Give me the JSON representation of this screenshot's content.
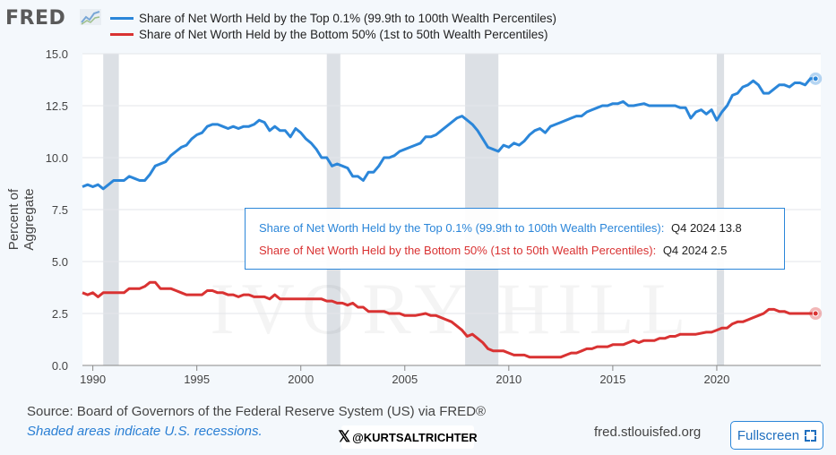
{
  "header": {
    "logo_text": "FRED",
    "logo_icon": "chart-line-icon"
  },
  "legend": [
    {
      "label": "Share of Net Worth Held by the Top 0.1% (99.9th to 100th Wealth Percentiles)",
      "color": "#2b86d9"
    },
    {
      "label": "Share of Net Worth Held by the Bottom 50% (1st to 50th Wealth Percentiles)",
      "color": "#d93232"
    }
  ],
  "tooltip": {
    "line1_label": "Share of Net Worth Held by the Top 0.1% (99.9th to 100th Wealth Percentiles):",
    "line1_value": "Q4 2024 13.8",
    "line2_label": "Share of Net Worth Held by the Bottom 50% (1st to 50th Wealth Percentiles):",
    "line2_value": "Q4 2024 2.5"
  },
  "watermark": "IVORY HILL",
  "footer": {
    "source": "Source: Board of Governors of the Federal Reserve System (US) via FRED®",
    "shaded_note": "Shaded areas indicate U.S. recessions.",
    "credit": "@KURTSALTRICHTER",
    "credit_icon": "x-logo-icon",
    "site": "fred.stlouisfed.org",
    "fullscreen_label": "Fullscreen",
    "fullscreen_icon": "expand-icon"
  },
  "chart_data": {
    "type": "line",
    "xlabel": "",
    "ylabel": "Percent of Aggregate",
    "xlim": [
      1989.5,
      2025.0
    ],
    "ylim": [
      0,
      15
    ],
    "x_ticks": [
      1990,
      1995,
      2000,
      2005,
      2010,
      2015,
      2020
    ],
    "y_ticks": [
      0.0,
      2.5,
      5.0,
      7.5,
      10.0,
      12.5,
      15.0
    ],
    "y_tick_labels": [
      "0.0",
      "2.5",
      "5.0",
      "7.5",
      "10.0",
      "12.5",
      "15.0"
    ],
    "grid": "horizontal",
    "recessions": [
      [
        1990.5,
        1991.25
      ],
      [
        2001.25,
        2001.9
      ],
      [
        2007.9,
        2009.5
      ],
      [
        2020.0,
        2020.35
      ]
    ],
    "series": [
      {
        "name": "Share of Net Worth Held by the Top 0.1% (99.9th to 100th Wealth Percentiles)",
        "color": "#2b86d9",
        "points": [
          [
            1989.5,
            8.6
          ],
          [
            1989.75,
            8.7
          ],
          [
            1990.0,
            8.6
          ],
          [
            1990.25,
            8.7
          ],
          [
            1990.5,
            8.5
          ],
          [
            1990.75,
            8.7
          ],
          [
            1991.0,
            8.9
          ],
          [
            1991.5,
            8.9
          ],
          [
            1991.75,
            9.1
          ],
          [
            1992.0,
            9.0
          ],
          [
            1992.25,
            8.9
          ],
          [
            1992.5,
            8.9
          ],
          [
            1992.75,
            9.2
          ],
          [
            1993.0,
            9.6
          ],
          [
            1993.5,
            9.8
          ],
          [
            1993.75,
            10.1
          ],
          [
            1994.0,
            10.3
          ],
          [
            1994.25,
            10.5
          ],
          [
            1994.5,
            10.6
          ],
          [
            1994.75,
            10.9
          ],
          [
            1995.0,
            11.1
          ],
          [
            1995.25,
            11.2
          ],
          [
            1995.5,
            11.5
          ],
          [
            1995.75,
            11.6
          ],
          [
            1996.0,
            11.6
          ],
          [
            1996.25,
            11.5
          ],
          [
            1996.5,
            11.4
          ],
          [
            1996.75,
            11.5
          ],
          [
            1997.0,
            11.4
          ],
          [
            1997.25,
            11.5
          ],
          [
            1997.5,
            11.5
          ],
          [
            1997.75,
            11.6
          ],
          [
            1998.0,
            11.8
          ],
          [
            1998.25,
            11.7
          ],
          [
            1998.5,
            11.3
          ],
          [
            1998.75,
            11.5
          ],
          [
            1999.0,
            11.3
          ],
          [
            1999.25,
            11.3
          ],
          [
            1999.5,
            11.0
          ],
          [
            1999.75,
            11.4
          ],
          [
            2000.0,
            11.2
          ],
          [
            2000.25,
            10.9
          ],
          [
            2000.5,
            10.7
          ],
          [
            2000.75,
            10.4
          ],
          [
            2001.0,
            10.0
          ],
          [
            2001.25,
            10.0
          ],
          [
            2001.5,
            9.6
          ],
          [
            2001.75,
            9.7
          ],
          [
            2002.0,
            9.6
          ],
          [
            2002.25,
            9.5
          ],
          [
            2002.5,
            9.1
          ],
          [
            2002.75,
            9.1
          ],
          [
            2003.0,
            8.9
          ],
          [
            2003.25,
            9.3
          ],
          [
            2003.5,
            9.3
          ],
          [
            2003.75,
            9.6
          ],
          [
            2004.0,
            10.0
          ],
          [
            2004.25,
            10.0
          ],
          [
            2004.5,
            10.1
          ],
          [
            2004.75,
            10.3
          ],
          [
            2005.0,
            10.4
          ],
          [
            2005.25,
            10.5
          ],
          [
            2005.5,
            10.6
          ],
          [
            2005.75,
            10.7
          ],
          [
            2006.0,
            11.0
          ],
          [
            2006.25,
            11.0
          ],
          [
            2006.5,
            11.1
          ],
          [
            2006.75,
            11.3
          ],
          [
            2007.0,
            11.5
          ],
          [
            2007.25,
            11.7
          ],
          [
            2007.5,
            11.9
          ],
          [
            2007.75,
            12.0
          ],
          [
            2008.0,
            11.8
          ],
          [
            2008.25,
            11.6
          ],
          [
            2008.5,
            11.3
          ],
          [
            2008.75,
            10.9
          ],
          [
            2009.0,
            10.5
          ],
          [
            2009.25,
            10.4
          ],
          [
            2009.5,
            10.3
          ],
          [
            2009.75,
            10.6
          ],
          [
            2010.0,
            10.5
          ],
          [
            2010.25,
            10.7
          ],
          [
            2010.5,
            10.6
          ],
          [
            2010.75,
            10.8
          ],
          [
            2011.0,
            11.1
          ],
          [
            2011.25,
            11.3
          ],
          [
            2011.5,
            11.4
          ],
          [
            2011.75,
            11.2
          ],
          [
            2012.0,
            11.5
          ],
          [
            2012.25,
            11.6
          ],
          [
            2012.5,
            11.7
          ],
          [
            2012.75,
            11.8
          ],
          [
            2013.0,
            11.9
          ],
          [
            2013.25,
            12.0
          ],
          [
            2013.5,
            12.0
          ],
          [
            2013.75,
            12.2
          ],
          [
            2014.0,
            12.3
          ],
          [
            2014.25,
            12.4
          ],
          [
            2014.5,
            12.5
          ],
          [
            2014.75,
            12.5
          ],
          [
            2015.0,
            12.6
          ],
          [
            2015.25,
            12.6
          ],
          [
            2015.5,
            12.7
          ],
          [
            2015.75,
            12.5
          ],
          [
            2016.0,
            12.5
          ],
          [
            2016.5,
            12.6
          ],
          [
            2016.75,
            12.5
          ],
          [
            2017.0,
            12.5
          ],
          [
            2017.5,
            12.5
          ],
          [
            2018.0,
            12.5
          ],
          [
            2018.25,
            12.4
          ],
          [
            2018.5,
            12.4
          ],
          [
            2018.75,
            11.9
          ],
          [
            2019.0,
            12.2
          ],
          [
            2019.25,
            12.3
          ],
          [
            2019.5,
            12.1
          ],
          [
            2019.75,
            12.3
          ],
          [
            2020.0,
            11.8
          ],
          [
            2020.25,
            12.2
          ],
          [
            2020.5,
            12.5
          ],
          [
            2020.75,
            13.0
          ],
          [
            2021.0,
            13.1
          ],
          [
            2021.25,
            13.4
          ],
          [
            2021.5,
            13.5
          ],
          [
            2021.75,
            13.7
          ],
          [
            2022.0,
            13.5
          ],
          [
            2022.25,
            13.1
          ],
          [
            2022.5,
            13.1
          ],
          [
            2022.75,
            13.3
          ],
          [
            2023.0,
            13.5
          ],
          [
            2023.25,
            13.5
          ],
          [
            2023.5,
            13.4
          ],
          [
            2023.75,
            13.6
          ],
          [
            2024.0,
            13.6
          ],
          [
            2024.25,
            13.5
          ],
          [
            2024.5,
            13.8
          ],
          [
            2024.75,
            13.8
          ]
        ]
      },
      {
        "name": "Share of Net Worth Held by the Bottom 50% (1st to 50th Wealth Percentiles)",
        "color": "#d93232",
        "points": [
          [
            1989.5,
            3.5
          ],
          [
            1989.75,
            3.4
          ],
          [
            1990.0,
            3.5
          ],
          [
            1990.25,
            3.3
          ],
          [
            1990.5,
            3.5
          ],
          [
            1991.0,
            3.5
          ],
          [
            1991.5,
            3.5
          ],
          [
            1991.75,
            3.7
          ],
          [
            1992.0,
            3.7
          ],
          [
            1992.25,
            3.7
          ],
          [
            1992.5,
            3.8
          ],
          [
            1992.75,
            4.0
          ],
          [
            1993.0,
            4.0
          ],
          [
            1993.25,
            3.7
          ],
          [
            1993.5,
            3.7
          ],
          [
            1993.75,
            3.7
          ],
          [
            1994.0,
            3.6
          ],
          [
            1994.25,
            3.5
          ],
          [
            1994.5,
            3.4
          ],
          [
            1995.0,
            3.4
          ],
          [
            1995.25,
            3.4
          ],
          [
            1995.5,
            3.6
          ],
          [
            1995.75,
            3.6
          ],
          [
            1996.0,
            3.5
          ],
          [
            1996.25,
            3.5
          ],
          [
            1996.5,
            3.4
          ],
          [
            1996.75,
            3.4
          ],
          [
            1997.0,
            3.3
          ],
          [
            1997.25,
            3.4
          ],
          [
            1997.5,
            3.4
          ],
          [
            1997.75,
            3.3
          ],
          [
            1998.0,
            3.3
          ],
          [
            1998.25,
            3.3
          ],
          [
            1998.5,
            3.2
          ],
          [
            1998.75,
            3.4
          ],
          [
            1999.0,
            3.2
          ],
          [
            1999.25,
            3.2
          ],
          [
            1999.5,
            3.2
          ],
          [
            2000.0,
            3.2
          ],
          [
            2001.0,
            3.2
          ],
          [
            2001.25,
            3.1
          ],
          [
            2001.5,
            3.1
          ],
          [
            2001.75,
            3.0
          ],
          [
            2002.0,
            3.0
          ],
          [
            2002.25,
            2.9
          ],
          [
            2002.5,
            3.0
          ],
          [
            2002.75,
            2.8
          ],
          [
            2003.0,
            2.8
          ],
          [
            2003.25,
            2.6
          ],
          [
            2003.5,
            2.6
          ],
          [
            2004.0,
            2.6
          ],
          [
            2004.25,
            2.5
          ],
          [
            2004.5,
            2.5
          ],
          [
            2004.75,
            2.5
          ],
          [
            2005.0,
            2.4
          ],
          [
            2005.5,
            2.4
          ],
          [
            2006.0,
            2.5
          ],
          [
            2006.25,
            2.4
          ],
          [
            2006.5,
            2.4
          ],
          [
            2006.75,
            2.3
          ],
          [
            2007.0,
            2.2
          ],
          [
            2007.25,
            2.1
          ],
          [
            2007.5,
            1.9
          ],
          [
            2007.75,
            1.7
          ],
          [
            2008.0,
            1.4
          ],
          [
            2008.25,
            1.5
          ],
          [
            2008.5,
            1.3
          ],
          [
            2008.75,
            1.1
          ],
          [
            2009.0,
            0.8
          ],
          [
            2009.25,
            0.7
          ],
          [
            2009.5,
            0.7
          ],
          [
            2009.75,
            0.7
          ],
          [
            2010.0,
            0.6
          ],
          [
            2010.25,
            0.5
          ],
          [
            2010.5,
            0.5
          ],
          [
            2010.75,
            0.5
          ],
          [
            2011.0,
            0.4
          ],
          [
            2011.5,
            0.4
          ],
          [
            2012.0,
            0.4
          ],
          [
            2012.5,
            0.4
          ],
          [
            2012.75,
            0.5
          ],
          [
            2013.0,
            0.6
          ],
          [
            2013.25,
            0.6
          ],
          [
            2013.5,
            0.7
          ],
          [
            2013.75,
            0.8
          ],
          [
            2014.0,
            0.8
          ],
          [
            2014.25,
            0.9
          ],
          [
            2014.5,
            0.9
          ],
          [
            2014.75,
            0.9
          ],
          [
            2015.0,
            1.0
          ],
          [
            2015.5,
            1.0
          ],
          [
            2015.75,
            1.1
          ],
          [
            2016.0,
            1.2
          ],
          [
            2016.25,
            1.1
          ],
          [
            2016.5,
            1.2
          ],
          [
            2017.0,
            1.2
          ],
          [
            2017.25,
            1.3
          ],
          [
            2017.5,
            1.3
          ],
          [
            2017.75,
            1.4
          ],
          [
            2018.0,
            1.4
          ],
          [
            2018.25,
            1.5
          ],
          [
            2018.5,
            1.5
          ],
          [
            2019.0,
            1.5
          ],
          [
            2019.5,
            1.6
          ],
          [
            2019.75,
            1.6
          ],
          [
            2020.0,
            1.7
          ],
          [
            2020.25,
            1.8
          ],
          [
            2020.5,
            1.8
          ],
          [
            2020.75,
            2.0
          ],
          [
            2021.0,
            2.1
          ],
          [
            2021.25,
            2.1
          ],
          [
            2021.5,
            2.2
          ],
          [
            2021.75,
            2.3
          ],
          [
            2022.0,
            2.4
          ],
          [
            2022.25,
            2.5
          ],
          [
            2022.5,
            2.7
          ],
          [
            2022.75,
            2.7
          ],
          [
            2023.0,
            2.6
          ],
          [
            2023.25,
            2.6
          ],
          [
            2023.5,
            2.5
          ],
          [
            2024.0,
            2.5
          ],
          [
            2024.25,
            2.5
          ],
          [
            2024.5,
            2.5
          ],
          [
            2024.75,
            2.5
          ]
        ]
      }
    ]
  }
}
